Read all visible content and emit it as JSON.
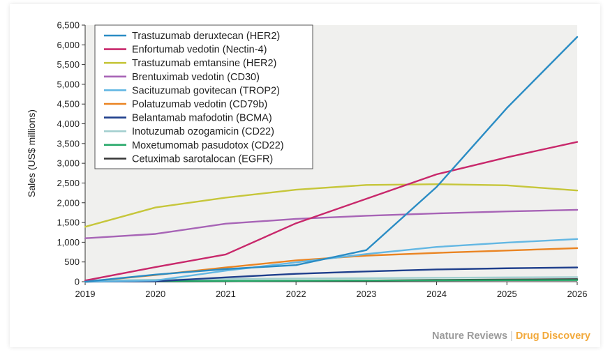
{
  "chart_data": {
    "type": "line",
    "ylabel": "Sales (US$ millions)",
    "xlabel": "",
    "x": [
      "2019",
      "2020",
      "2021",
      "2022",
      "2023",
      "2024",
      "2025",
      "2026"
    ],
    "xlim": [
      2019,
      2026
    ],
    "ylim": [
      0,
      6500
    ],
    "yticks": [
      "0",
      "500",
      "1,000",
      "1,500",
      "2,000",
      "2,500",
      "3,000",
      "3,500",
      "4,000",
      "4,500",
      "5,000",
      "5,500",
      "6,000",
      "6,500"
    ],
    "grid": false,
    "legend_position": "top-left",
    "series": [
      {
        "name": "Trastuzumab deruxtecan (HER2)",
        "color": "#2a8cc4",
        "values": [
          0,
          180,
          320,
          420,
          800,
          2400,
          4400,
          6200
        ]
      },
      {
        "name": "Enfortumab vedotin (Nectin-4)",
        "color": "#c8286b",
        "values": [
          30,
          370,
          690,
          1480,
          2100,
          2720,
          3150,
          3540
        ]
      },
      {
        "name": "Trastuzumab emtansine (HER2)",
        "color": "#c6c63a",
        "values": [
          1390,
          1880,
          2130,
          2330,
          2450,
          2470,
          2440,
          2310
        ]
      },
      {
        "name": "Brentuximab vedotin (CD30)",
        "color": "#a764b6",
        "values": [
          1100,
          1210,
          1470,
          1590,
          1670,
          1730,
          1780,
          1820
        ]
      },
      {
        "name": "Sacituzumab govitecan (TROP2)",
        "color": "#63b7e3",
        "values": [
          0,
          30,
          280,
          490,
          700,
          880,
          990,
          1080
        ]
      },
      {
        "name": "Polatuzumab vedotin (CD79b)",
        "color": "#ea8422",
        "values": [
          0,
          170,
          360,
          540,
          660,
          730,
          790,
          850
        ]
      },
      {
        "name": "Belantamab mafodotin (BCMA)",
        "color": "#1f3f8c",
        "values": [
          0,
          10,
          110,
          200,
          260,
          310,
          340,
          360
        ]
      },
      {
        "name": "Inotuzumab ozogamicin (CD22)",
        "color": "#a2cfcf",
        "values": [
          30,
          50,
          70,
          80,
          90,
          100,
          110,
          115
        ]
      },
      {
        "name": "Moxetumomab pasudotox (CD22)",
        "color": "#25a868",
        "values": [
          10,
          15,
          20,
          25,
          30,
          35,
          38,
          40
        ]
      },
      {
        "name": "Cetuximab sarotalocan (EGFR)",
        "color": "#3a3a3a",
        "values": [
          0,
          5,
          10,
          20,
          30,
          45,
          55,
          65
        ]
      }
    ]
  },
  "credit": {
    "publisher": "Nature Reviews",
    "separator": "|",
    "journal": "Drug Discovery"
  }
}
